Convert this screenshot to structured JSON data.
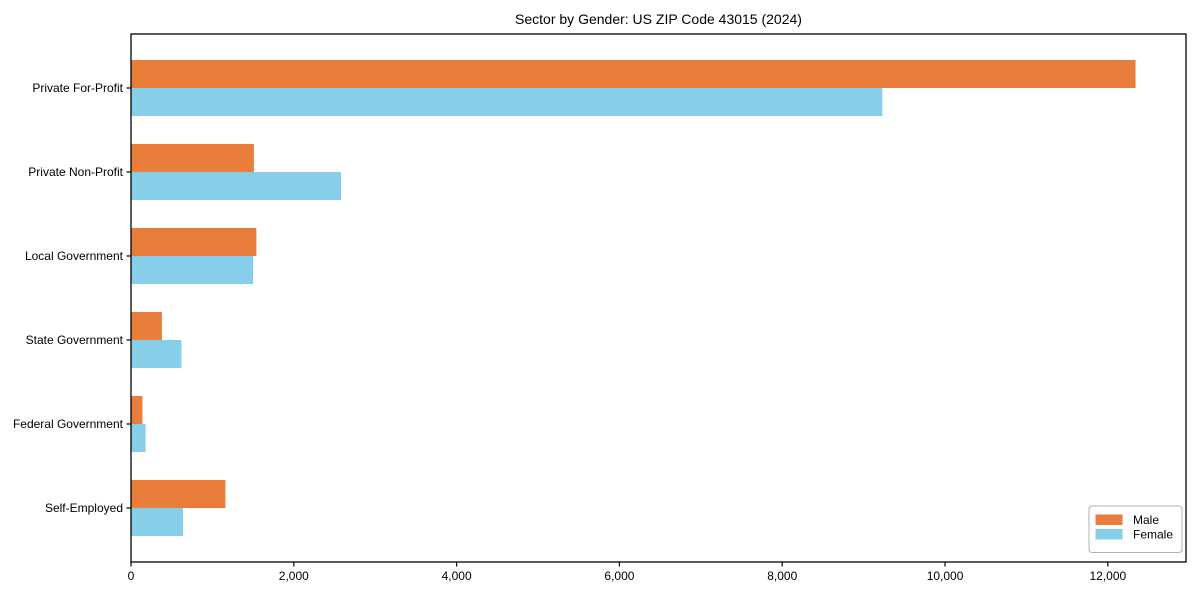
{
  "figure": {
    "background": "#ffffff",
    "border_color": "#000000"
  },
  "chart_data": {
    "type": "bar",
    "orientation": "horizontal",
    "title": "Sector by Gender: US ZIP Code 43015 (2024)",
    "categories": [
      "Private For-Profit",
      "Private Non-Profit",
      "Local Government",
      "State Government",
      "Federal Government",
      "Self-Employed"
    ],
    "series": [
      {
        "name": "Male",
        "color": "#E97D3C",
        "values": [
          12340,
          1510,
          1540,
          380,
          140,
          1160
        ]
      },
      {
        "name": "Female",
        "color": "#87CEEB",
        "values": [
          9230,
          2580,
          1500,
          620,
          180,
          640
        ]
      }
    ],
    "xlabel": "",
    "ylabel": "",
    "xlim": [
      0,
      12960
    ],
    "x_ticks": [
      {
        "value": 0,
        "label": "0"
      },
      {
        "value": 2000,
        "label": "2,000"
      },
      {
        "value": 4000,
        "label": "4,000"
      },
      {
        "value": 6000,
        "label": "6,000"
      },
      {
        "value": 8000,
        "label": "8,000"
      },
      {
        "value": 10000,
        "label": "10,000"
      },
      {
        "value": 12000,
        "label": "12,000"
      }
    ],
    "grid": false,
    "legend": {
      "position": "lower right",
      "border_color": "#b0b0b0",
      "background": "#ffffff",
      "entries": [
        "Male",
        "Female"
      ]
    }
  }
}
